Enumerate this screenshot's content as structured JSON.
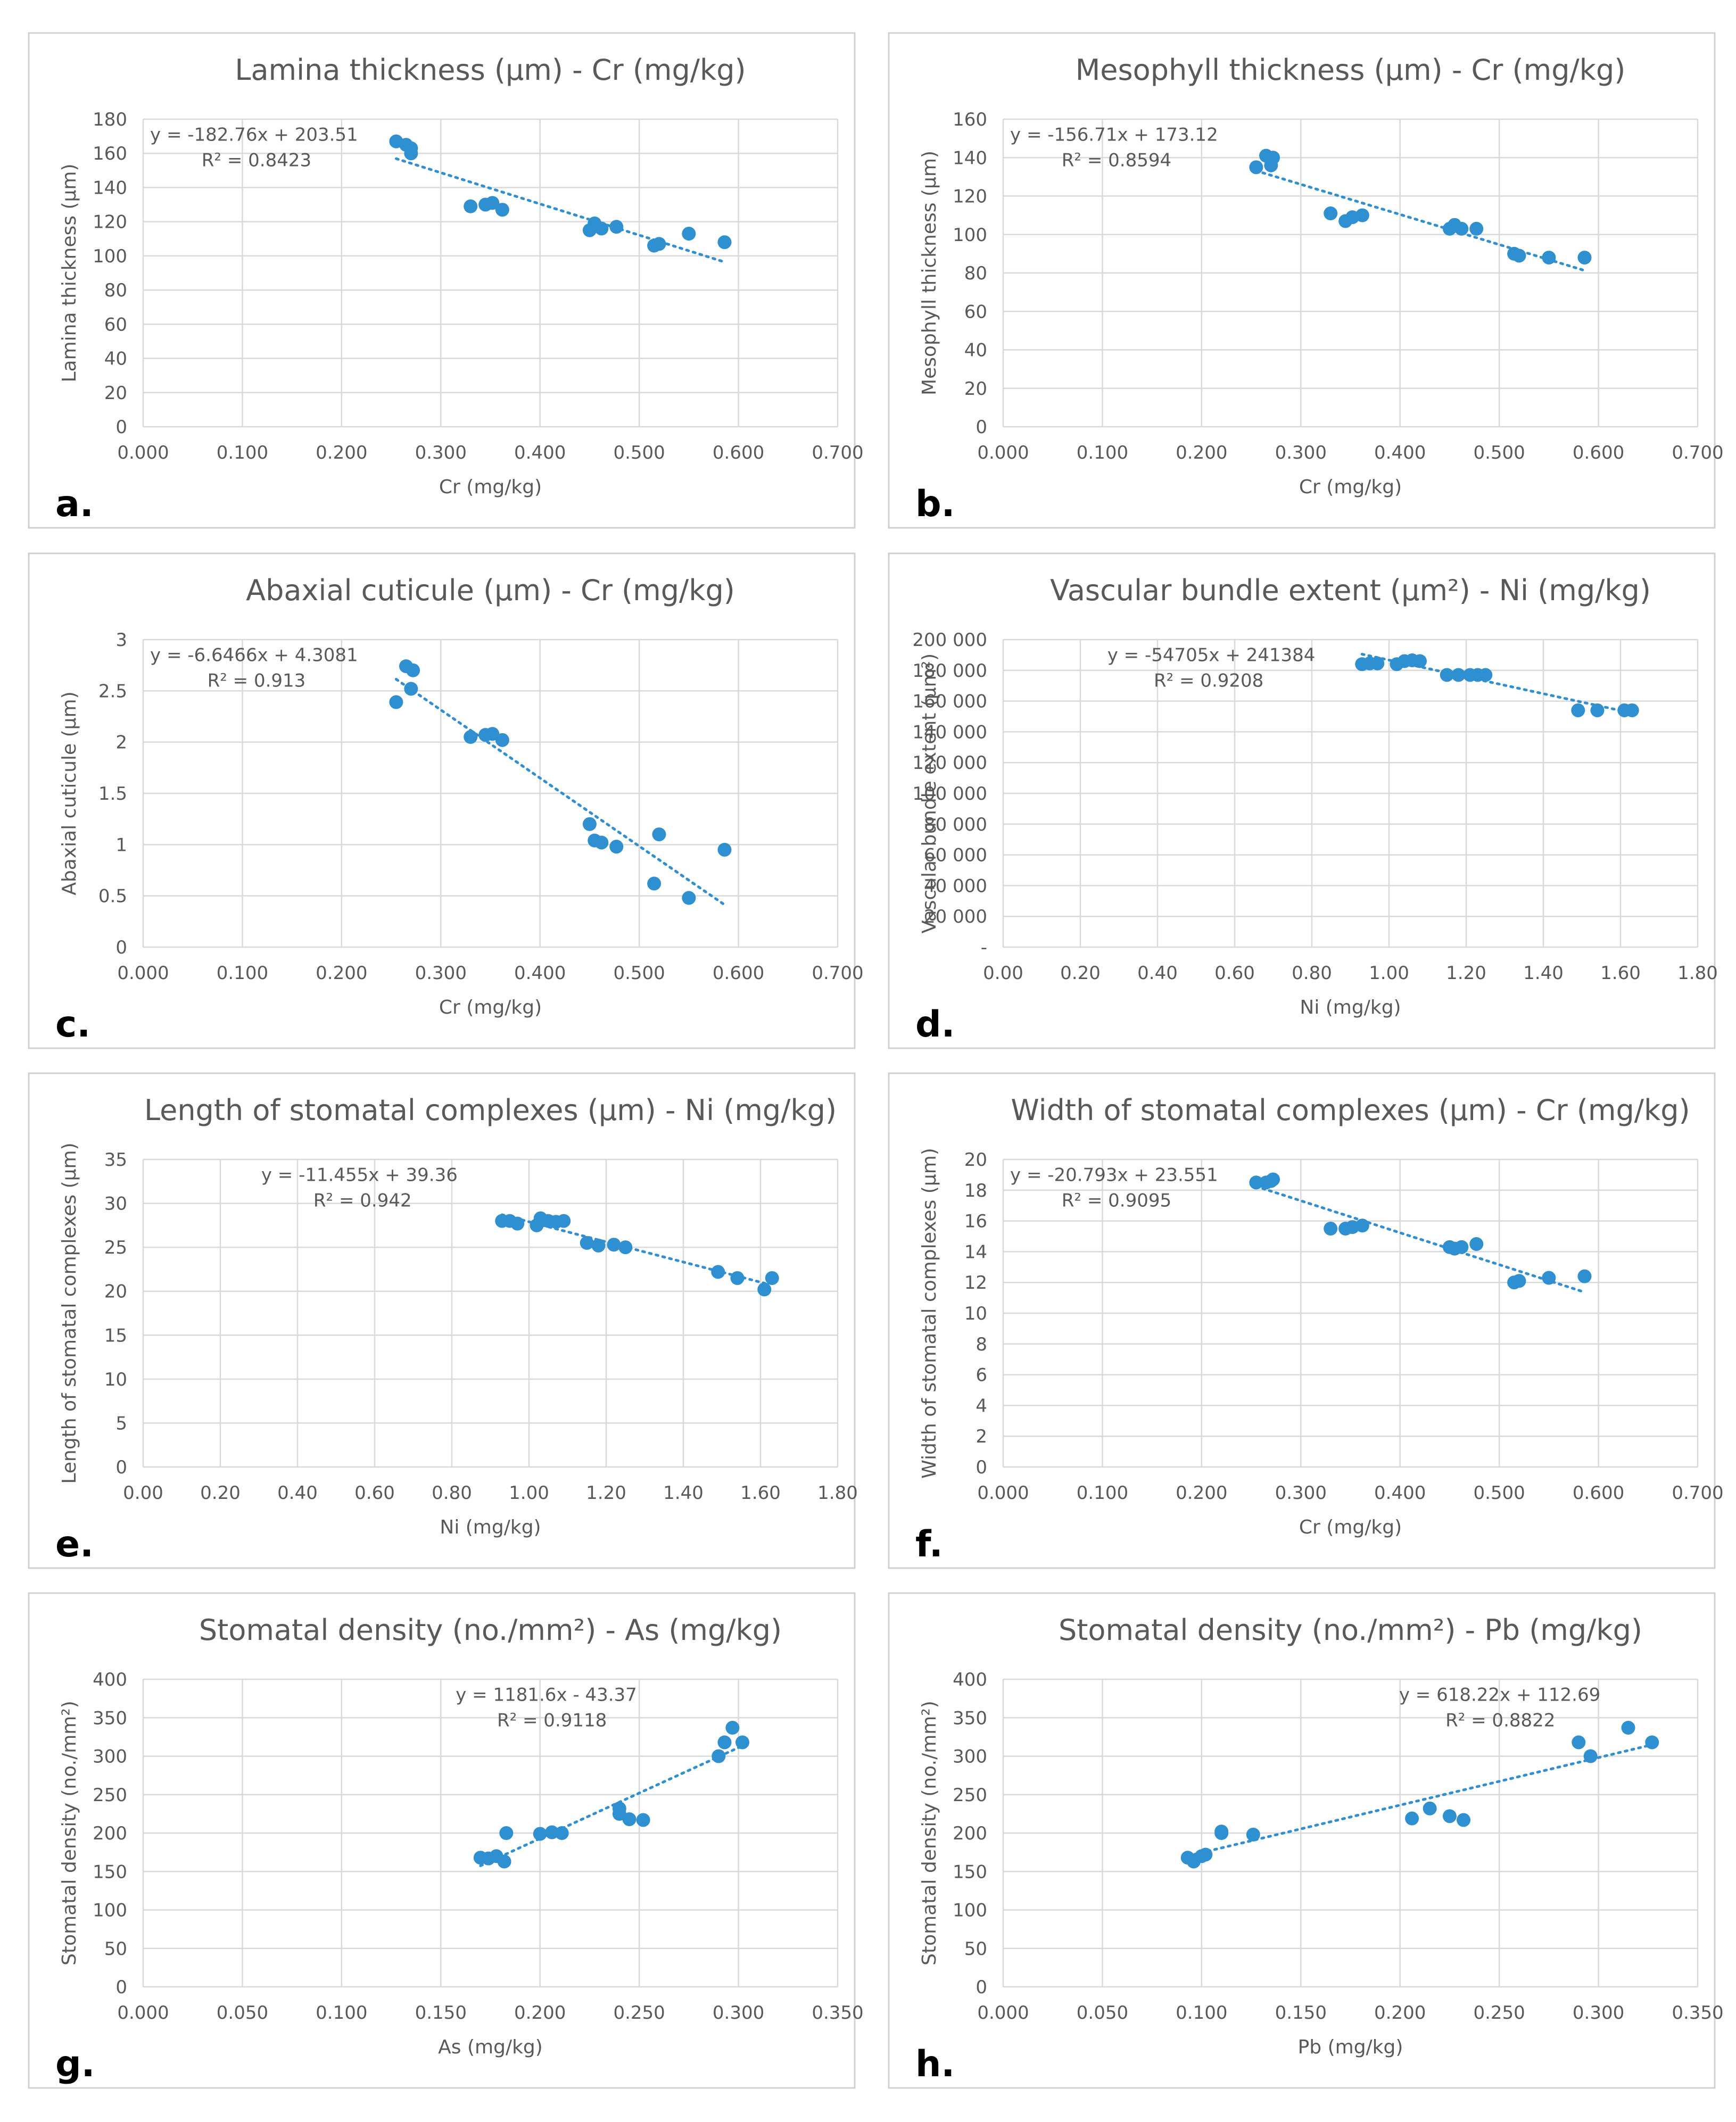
{
  "figure": {
    "colors": {
      "marker": "#2E8FD1",
      "trendline": "#2E8FD1",
      "grid": "#D9D9D9",
      "text": "#595959",
      "frame": "#D0D0D0"
    },
    "chart_data": [
      {
        "type": "scatter",
        "panel_label": "a.",
        "title": "Lamina thickness (µm) - Cr (mg/kg)",
        "xlabel": "Cr (mg/kg)",
        "ylabel": "Lamina thickness (µm)",
        "xlim": [
          0,
          0.7
        ],
        "xticks": [
          0,
          0.1,
          0.2,
          0.3,
          0.4,
          0.5,
          0.6,
          0.7
        ],
        "xticklabels": [
          "0.000",
          "0.100",
          "0.200",
          "0.300",
          "0.400",
          "0.500",
          "0.600",
          "0.700"
        ],
        "ylim": [
          0,
          180
        ],
        "yticks": [
          0,
          20,
          40,
          60,
          80,
          100,
          120,
          140,
          160,
          180
        ],
        "yticklabels": [
          "0",
          "20",
          "40",
          "60",
          "80",
          "100",
          "120",
          "140",
          "160",
          "180"
        ],
        "equation": "y = -182.76x + 203.51",
        "r2": "R² = 0.8423",
        "trendline": {
          "slope": -182.76,
          "intercept": 203.51,
          "xrange": [
            0.255,
            0.586
          ]
        },
        "points": [
          [
            0.255,
            167
          ],
          [
            0.265,
            165
          ],
          [
            0.27,
            163
          ],
          [
            0.27,
            160
          ],
          [
            0.33,
            129
          ],
          [
            0.345,
            130
          ],
          [
            0.352,
            131
          ],
          [
            0.362,
            127
          ],
          [
            0.45,
            115
          ],
          [
            0.455,
            119
          ],
          [
            0.462,
            116
          ],
          [
            0.477,
            117
          ],
          [
            0.515,
            106
          ],
          [
            0.52,
            107
          ],
          [
            0.55,
            113
          ],
          [
            0.586,
            108
          ]
        ]
      },
      {
        "type": "scatter",
        "panel_label": "b.",
        "title": "Mesophyll thickness (µm) - Cr (mg/kg)",
        "xlabel": "Cr (mg/kg)",
        "ylabel": "Mesophyll thickness (µm)",
        "xlim": [
          0,
          0.7
        ],
        "xticks": [
          0,
          0.1,
          0.2,
          0.3,
          0.4,
          0.5,
          0.6,
          0.7
        ],
        "xticklabels": [
          "0.000",
          "0.100",
          "0.200",
          "0.300",
          "0.400",
          "0.500",
          "0.600",
          "0.700"
        ],
        "ylim": [
          0,
          160
        ],
        "yticks": [
          0,
          20,
          40,
          60,
          80,
          100,
          120,
          140,
          160
        ],
        "yticklabels": [
          "0",
          "20",
          "40",
          "60",
          "80",
          "100",
          "120",
          "140",
          "160"
        ],
        "equation": "y = -156.71x + 173.12",
        "r2": "R² = 0.8594",
        "trendline": {
          "slope": -156.71,
          "intercept": 173.12,
          "xrange": [
            0.255,
            0.586
          ]
        },
        "points": [
          [
            0.255,
            135
          ],
          [
            0.265,
            141
          ],
          [
            0.272,
            140
          ],
          [
            0.27,
            136
          ],
          [
            0.33,
            111
          ],
          [
            0.345,
            107
          ],
          [
            0.352,
            109
          ],
          [
            0.362,
            110
          ],
          [
            0.45,
            103
          ],
          [
            0.455,
            105
          ],
          [
            0.462,
            103
          ],
          [
            0.477,
            103
          ],
          [
            0.515,
            90
          ],
          [
            0.52,
            89
          ],
          [
            0.55,
            88
          ],
          [
            0.586,
            88
          ]
        ]
      },
      {
        "type": "scatter",
        "panel_label": "c.",
        "title": "Abaxial cuticule (µm) - Cr (mg/kg)",
        "xlabel": "Cr (mg/kg)",
        "ylabel": "Abaxial cuticule (µm)",
        "xlim": [
          0,
          0.7
        ],
        "xticks": [
          0,
          0.1,
          0.2,
          0.3,
          0.4,
          0.5,
          0.6,
          0.7
        ],
        "xticklabels": [
          "0.000",
          "0.100",
          "0.200",
          "0.300",
          "0.400",
          "0.500",
          "0.600",
          "0.700"
        ],
        "ylim": [
          0,
          3
        ],
        "yticks": [
          0,
          0.5,
          1,
          1.5,
          2,
          2.5,
          3
        ],
        "yticklabels": [
          "0",
          "0.5",
          "1",
          "1.5",
          "2",
          "2.5",
          "3"
        ],
        "equation": "y = -6.6466x + 4.3081",
        "r2": "R² = 0.913",
        "trendline": {
          "slope": -6.6466,
          "intercept": 4.3081,
          "xrange": [
            0.255,
            0.586
          ]
        },
        "points": [
          [
            0.255,
            2.39
          ],
          [
            0.265,
            2.74
          ],
          [
            0.272,
            2.7
          ],
          [
            0.27,
            2.52
          ],
          [
            0.33,
            2.05
          ],
          [
            0.345,
            2.07
          ],
          [
            0.352,
            2.08
          ],
          [
            0.362,
            2.02
          ],
          [
            0.45,
            1.2
          ],
          [
            0.455,
            1.04
          ],
          [
            0.462,
            1.02
          ],
          [
            0.477,
            0.98
          ],
          [
            0.515,
            0.62
          ],
          [
            0.52,
            1.1
          ],
          [
            0.55,
            0.48
          ],
          [
            0.586,
            0.95
          ]
        ]
      },
      {
        "type": "scatter",
        "panel_label": "d.",
        "title": "Vascular bundle extent (µm²) - Ni (mg/kg)",
        "xlabel": "Ni (mg/kg)",
        "ylabel": "Vascular bundle extent (µm²)",
        "xlim": [
          0,
          1.8
        ],
        "xticks": [
          0,
          0.2,
          0.4,
          0.6,
          0.8,
          1.0,
          1.2,
          1.4,
          1.6,
          1.8
        ],
        "xticklabels": [
          "0.00",
          "0.20",
          "0.40",
          "0.60",
          "0.80",
          "1.00",
          "1.20",
          "1.40",
          "1.60",
          "1.80"
        ],
        "ylim": [
          0,
          200000
        ],
        "yticks": [
          0,
          20000,
          40000,
          60000,
          80000,
          100000,
          120000,
          140000,
          160000,
          180000,
          200000
        ],
        "yticklabels": [
          "-",
          "20 000",
          "40 000",
          "60 000",
          "80 000",
          "100 000",
          "120 000",
          "140 000",
          "160 000",
          "180 000",
          "200 000"
        ],
        "equation": "y = -54705x + 241384",
        "r2": "R² = 0.9208",
        "trendline": {
          "slope": -54705,
          "intercept": 241384,
          "xrange": [
            0.93,
            1.62
          ]
        },
        "points": [
          [
            0.93,
            184000
          ],
          [
            0.95,
            184500
          ],
          [
            0.97,
            184500
          ],
          [
            1.02,
            184000
          ],
          [
            1.04,
            186000
          ],
          [
            1.06,
            186500
          ],
          [
            1.08,
            186000
          ],
          [
            1.15,
            177000
          ],
          [
            1.18,
            177000
          ],
          [
            1.21,
            177000
          ],
          [
            1.23,
            177000
          ],
          [
            1.25,
            177000
          ],
          [
            1.49,
            154000
          ],
          [
            1.54,
            154000
          ],
          [
            1.61,
            154000
          ],
          [
            1.63,
            154000
          ]
        ]
      },
      {
        "type": "scatter",
        "panel_label": "e.",
        "title": "Length of stomatal complexes (µm) - Ni (mg/kg)",
        "xlabel": "Ni (mg/kg)",
        "ylabel": "Length of stomatal complexes (µm)",
        "xlim": [
          0,
          1.8
        ],
        "xticks": [
          0,
          0.2,
          0.4,
          0.6,
          0.8,
          1.0,
          1.2,
          1.4,
          1.6,
          1.8
        ],
        "xticklabels": [
          "0.00",
          "0.20",
          "0.40",
          "0.60",
          "0.80",
          "1.00",
          "1.20",
          "1.40",
          "1.60",
          "1.80"
        ],
        "ylim": [
          0,
          35
        ],
        "yticks": [
          0,
          5,
          10,
          15,
          20,
          25,
          30,
          35
        ],
        "yticklabels": [
          "0",
          "5",
          "10",
          "15",
          "20",
          "25",
          "30",
          "35"
        ],
        "equation": "y = -11.455x + 39.36",
        "r2": "R² = 0.942",
        "trendline": {
          "slope": -11.455,
          "intercept": 39.36,
          "xrange": [
            0.93,
            1.62
          ]
        },
        "points": [
          [
            0.93,
            28
          ],
          [
            0.95,
            28
          ],
          [
            0.97,
            27.7
          ],
          [
            1.02,
            27.5
          ],
          [
            1.03,
            28.3
          ],
          [
            1.05,
            28
          ],
          [
            1.07,
            27.9
          ],
          [
            1.09,
            28
          ],
          [
            1.15,
            25.5
          ],
          [
            1.18,
            25.2
          ],
          [
            1.22,
            25.3
          ],
          [
            1.25,
            25
          ],
          [
            1.49,
            22.2
          ],
          [
            1.54,
            21.5
          ],
          [
            1.61,
            20.2
          ],
          [
            1.63,
            21.5
          ]
        ]
      },
      {
        "type": "scatter",
        "panel_label": "f.",
        "title": "Width of stomatal complexes (µm) - Cr (mg/kg)",
        "xlabel": "Cr (mg/kg)",
        "ylabel": "Width of stomatal complexes (µm)",
        "xlim": [
          0,
          0.7
        ],
        "xticks": [
          0,
          0.1,
          0.2,
          0.3,
          0.4,
          0.5,
          0.6,
          0.7
        ],
        "xticklabels": [
          "0.000",
          "0.100",
          "0.200",
          "0.300",
          "0.400",
          "0.500",
          "0.600",
          "0.700"
        ],
        "ylim": [
          0,
          20
        ],
        "yticks": [
          0,
          2,
          4,
          6,
          8,
          10,
          12,
          14,
          16,
          18,
          20
        ],
        "yticklabels": [
          "0",
          "2",
          "4",
          "6",
          "8",
          "10",
          "12",
          "14",
          "16",
          "18",
          "20"
        ],
        "equation": "y = -20.793x + 23.551",
        "r2": "R² = 0.9095",
        "trendline": {
          "slope": -20.793,
          "intercept": 23.551,
          "xrange": [
            0.255,
            0.586
          ]
        },
        "points": [
          [
            0.255,
            18.5
          ],
          [
            0.265,
            18.5
          ],
          [
            0.272,
            18.7
          ],
          [
            0.27,
            18.6
          ],
          [
            0.33,
            15.5
          ],
          [
            0.345,
            15.5
          ],
          [
            0.352,
            15.6
          ],
          [
            0.362,
            15.7
          ],
          [
            0.45,
            14.3
          ],
          [
            0.455,
            14.2
          ],
          [
            0.462,
            14.3
          ],
          [
            0.477,
            14.5
          ],
          [
            0.515,
            12
          ],
          [
            0.52,
            12.1
          ],
          [
            0.55,
            12.3
          ],
          [
            0.586,
            12.4
          ]
        ]
      },
      {
        "type": "scatter",
        "panel_label": "g.",
        "title": "Stomatal density (no./mm²) - As (mg/kg)",
        "xlabel": "As (mg/kg)",
        "ylabel": "Stomatal density (no./mm²)",
        "xlim": [
          0,
          0.35
        ],
        "xticks": [
          0,
          0.05,
          0.1,
          0.15,
          0.2,
          0.25,
          0.3,
          0.35
        ],
        "xticklabels": [
          "0.000",
          "0.050",
          "0.100",
          "0.150",
          "0.200",
          "0.250",
          "0.300",
          "0.350"
        ],
        "ylim": [
          0,
          400
        ],
        "yticks": [
          0,
          50,
          100,
          150,
          200,
          250,
          300,
          350,
          400
        ],
        "yticklabels": [
          "0",
          "50",
          "100",
          "150",
          "200",
          "250",
          "300",
          "350",
          "400"
        ],
        "equation": "y = 1181.6x - 43.37",
        "r2": "R² = 0.9118",
        "trendline": {
          "slope": 1181.6,
          "intercept": -43.37,
          "xrange": [
            0.17,
            0.302
          ]
        },
        "points": [
          [
            0.17,
            168
          ],
          [
            0.174,
            167
          ],
          [
            0.178,
            170
          ],
          [
            0.182,
            163
          ],
          [
            0.183,
            200
          ],
          [
            0.2,
            199
          ],
          [
            0.206,
            201
          ],
          [
            0.211,
            200
          ],
          [
            0.24,
            225
          ],
          [
            0.24,
            232
          ],
          [
            0.245,
            218
          ],
          [
            0.252,
            217
          ],
          [
            0.29,
            300
          ],
          [
            0.293,
            318
          ],
          [
            0.297,
            337
          ],
          [
            0.302,
            318
          ]
        ]
      },
      {
        "type": "scatter",
        "panel_label": "h.",
        "title": "Stomatal density (no./mm²) - Pb (mg/kg)",
        "xlabel": "Pb (mg/kg)",
        "ylabel": "Stomatal density (no./mm²)",
        "xlim": [
          0,
          0.35
        ],
        "xticks": [
          0,
          0.05,
          0.1,
          0.15,
          0.2,
          0.25,
          0.3,
          0.35
        ],
        "xticklabels": [
          "0.000",
          "0.050",
          "0.100",
          "0.150",
          "0.200",
          "0.250",
          "0.300",
          "0.350"
        ],
        "ylim": [
          0,
          400
        ],
        "yticks": [
          0,
          50,
          100,
          150,
          200,
          250,
          300,
          350,
          400
        ],
        "yticklabels": [
          "0",
          "50",
          "100",
          "150",
          "200",
          "250",
          "300",
          "350",
          "400"
        ],
        "equation": "y = 618.22x + 112.69",
        "r2": "R² = 0.8822",
        "trendline": {
          "slope": 618.22,
          "intercept": 112.69,
          "xrange": [
            0.093,
            0.327
          ]
        },
        "points": [
          [
            0.093,
            168
          ],
          [
            0.096,
            163
          ],
          [
            0.1,
            170
          ],
          [
            0.102,
            172
          ],
          [
            0.11,
            200
          ],
          [
            0.11,
            202
          ],
          [
            0.126,
            198
          ],
          [
            0.206,
            219
          ],
          [
            0.215,
            232
          ],
          [
            0.225,
            222
          ],
          [
            0.232,
            217
          ],
          [
            0.29,
            318
          ],
          [
            0.296,
            300
          ],
          [
            0.315,
            337
          ],
          [
            0.327,
            318
          ]
        ]
      }
    ]
  }
}
